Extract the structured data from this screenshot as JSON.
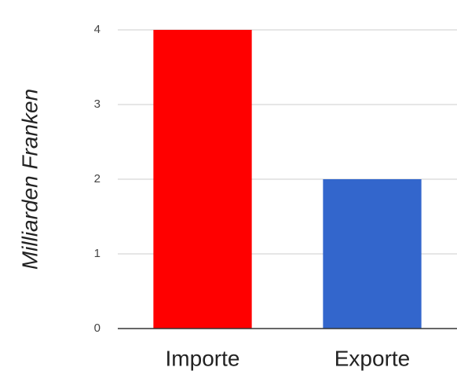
{
  "chart_data": {
    "type": "bar",
    "y_label": "Milliarden Franken",
    "categories": [
      "Importe",
      "Exporte"
    ],
    "values": [
      4,
      2
    ],
    "colors": [
      "#ff0000",
      "#3366cc"
    ],
    "ylim": [
      0,
      4
    ],
    "yticks": [
      0,
      1,
      2,
      3,
      4
    ],
    "grid": true
  }
}
